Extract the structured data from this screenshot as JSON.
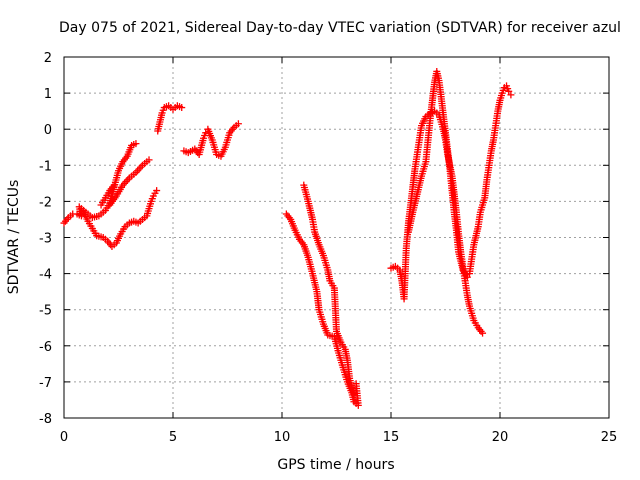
{
  "chart_data": {
    "type": "scatter",
    "title": "Day 075 of 2021, Sidereal Day-to-day VTEC variation (SDTVAR) for receiver azul",
    "xlabel": "GPS time / hours",
    "ylabel": "SDTVAR / TECUs",
    "xlim": [
      0,
      25
    ],
    "ylim": [
      -8,
      2
    ],
    "x_ticks": [
      "0",
      "5",
      "10",
      "15",
      "20",
      "25"
    ],
    "y_ticks": [
      "2",
      "1",
      "0",
      "-1",
      "-2",
      "-3",
      "-4",
      "-5",
      "-6",
      "-7",
      "-8"
    ],
    "grid": true,
    "marker": "plus",
    "color": "#ff0000",
    "series": [
      {
        "points": [
          [
            0.0,
            -2.6
          ],
          [
            0.2,
            -2.45
          ],
          [
            0.4,
            -2.35
          ],
          [
            0.6,
            -2.35
          ],
          [
            0.8,
            -2.4
          ],
          [
            0.7,
            -2.15
          ],
          [
            1.0,
            -2.3
          ],
          [
            1.3,
            -2.45
          ],
          [
            1.6,
            -2.4
          ],
          [
            1.9,
            -2.25
          ],
          [
            2.1,
            -2.05
          ],
          [
            2.3,
            -1.6
          ],
          [
            2.5,
            -1.15
          ],
          [
            2.7,
            -0.9
          ],
          [
            2.9,
            -0.75
          ],
          [
            3.1,
            -0.45
          ],
          [
            3.3,
            -0.4
          ]
        ]
      },
      {
        "points": [
          [
            0.9,
            -2.3
          ],
          [
            1.1,
            -2.55
          ],
          [
            1.3,
            -2.75
          ],
          [
            1.5,
            -2.95
          ],
          [
            1.8,
            -3.0
          ],
          [
            2.0,
            -3.1
          ],
          [
            2.2,
            -3.25
          ],
          [
            2.4,
            -3.15
          ],
          [
            2.6,
            -2.9
          ],
          [
            2.8,
            -2.7
          ],
          [
            3.0,
            -2.6
          ],
          [
            3.2,
            -2.55
          ],
          [
            3.4,
            -2.6
          ],
          [
            3.6,
            -2.5
          ],
          [
            3.8,
            -2.4
          ],
          [
            3.9,
            -2.2
          ],
          [
            4.0,
            -2.0
          ],
          [
            4.1,
            -1.85
          ],
          [
            4.25,
            -1.7
          ]
        ]
      },
      {
        "points": [
          [
            1.7,
            -2.1
          ],
          [
            1.9,
            -1.9
          ],
          [
            2.1,
            -1.7
          ],
          [
            2.3,
            -1.55
          ],
          [
            2.1,
            -2.1
          ],
          [
            2.4,
            -1.85
          ],
          [
            2.7,
            -1.55
          ],
          [
            3.0,
            -1.35
          ],
          [
            3.3,
            -1.2
          ],
          [
            3.6,
            -1.0
          ],
          [
            3.8,
            -0.9
          ],
          [
            3.9,
            -0.85
          ]
        ]
      },
      {
        "points": [
          [
            4.3,
            -0.05
          ],
          [
            4.4,
            0.2
          ],
          [
            4.5,
            0.45
          ],
          [
            4.6,
            0.6
          ],
          [
            4.8,
            0.65
          ],
          [
            5.0,
            0.55
          ],
          [
            5.2,
            0.65
          ],
          [
            5.4,
            0.6
          ]
        ]
      },
      {
        "points": [
          [
            5.5,
            -0.6
          ],
          [
            5.7,
            -0.65
          ],
          [
            6.0,
            -0.55
          ],
          [
            6.2,
            -0.7
          ],
          [
            6.4,
            -0.25
          ],
          [
            6.5,
            -0.1
          ],
          [
            6.6,
            0.0
          ],
          [
            6.8,
            -0.3
          ],
          [
            7.0,
            -0.7
          ],
          [
            7.2,
            -0.75
          ],
          [
            7.4,
            -0.5
          ],
          [
            7.6,
            -0.1
          ],
          [
            7.8,
            0.05
          ],
          [
            8.0,
            0.15
          ]
        ]
      },
      {
        "points": [
          [
            10.2,
            -2.35
          ],
          [
            10.4,
            -2.5
          ],
          [
            10.6,
            -2.8
          ],
          [
            10.8,
            -3.05
          ],
          [
            11.0,
            -3.2
          ],
          [
            11.2,
            -3.55
          ],
          [
            11.4,
            -4.0
          ],
          [
            11.6,
            -4.5
          ],
          [
            11.7,
            -5.0
          ],
          [
            11.9,
            -5.4
          ],
          [
            12.1,
            -5.7
          ],
          [
            12.4,
            -5.75
          ],
          [
            12.6,
            -6.2
          ],
          [
            12.8,
            -6.6
          ],
          [
            13.0,
            -7.0
          ],
          [
            13.2,
            -7.3
          ],
          [
            13.3,
            -7.55
          ],
          [
            13.5,
            -7.65
          ],
          [
            13.4,
            -7.05
          ]
        ]
      },
      {
        "points": [
          [
            11.0,
            -1.55
          ],
          [
            11.2,
            -2.0
          ],
          [
            11.4,
            -2.5
          ],
          [
            11.5,
            -2.85
          ],
          [
            11.7,
            -3.2
          ],
          [
            11.9,
            -3.5
          ],
          [
            12.1,
            -3.9
          ],
          [
            12.2,
            -4.2
          ],
          [
            12.4,
            -4.4
          ],
          [
            12.5,
            -5.6
          ],
          [
            12.7,
            -5.9
          ],
          [
            12.9,
            -6.1
          ],
          [
            13.0,
            -6.4
          ],
          [
            13.1,
            -6.9
          ],
          [
            13.3,
            -7.35
          ]
        ]
      },
      {
        "points": [
          [
            15.0,
            -3.85
          ],
          [
            15.2,
            -3.8
          ],
          [
            15.4,
            -3.9
          ],
          [
            15.5,
            -4.2
          ],
          [
            15.6,
            -4.7
          ],
          [
            15.7,
            -3.3
          ],
          [
            15.8,
            -2.6
          ],
          [
            15.9,
            -2.1
          ],
          [
            16.0,
            -1.6
          ],
          [
            16.1,
            -1.1
          ],
          [
            16.2,
            -0.7
          ],
          [
            16.3,
            -0.3
          ],
          [
            16.4,
            0.1
          ],
          [
            16.6,
            0.35
          ],
          [
            16.8,
            0.45
          ],
          [
            17.0,
            0.5
          ],
          [
            17.2,
            0.4
          ],
          [
            17.4,
            0.0
          ],
          [
            17.5,
            -0.3
          ],
          [
            17.6,
            -0.7
          ],
          [
            17.8,
            -1.3
          ],
          [
            17.9,
            -1.8
          ],
          [
            18.0,
            -2.3
          ],
          [
            18.1,
            -2.9
          ],
          [
            18.2,
            -3.4
          ],
          [
            18.3,
            -3.8
          ],
          [
            18.4,
            -4.2
          ],
          [
            18.5,
            -4.6
          ],
          [
            18.6,
            -4.9
          ],
          [
            18.7,
            -5.1
          ],
          [
            18.8,
            -5.3
          ],
          [
            19.0,
            -5.5
          ],
          [
            19.2,
            -5.65
          ]
        ]
      },
      {
        "points": [
          [
            15.8,
            -2.85
          ],
          [
            16.0,
            -2.3
          ],
          [
            16.2,
            -1.8
          ],
          [
            16.4,
            -1.3
          ],
          [
            16.6,
            -0.9
          ],
          [
            16.7,
            -0.3
          ],
          [
            16.8,
            0.3
          ],
          [
            16.9,
            0.8
          ],
          [
            17.0,
            1.3
          ],
          [
            17.1,
            1.6
          ],
          [
            17.2,
            1.35
          ],
          [
            17.3,
            0.9
          ],
          [
            17.4,
            0.4
          ],
          [
            17.5,
            -0.1
          ],
          [
            17.6,
            -0.6
          ],
          [
            17.7,
            -1.1
          ],
          [
            17.8,
            -1.7
          ],
          [
            17.9,
            -2.3
          ],
          [
            18.0,
            -2.8
          ],
          [
            18.1,
            -3.4
          ],
          [
            18.3,
            -3.9
          ],
          [
            18.5,
            -4.1
          ],
          [
            18.6,
            -4.0
          ],
          [
            18.7,
            -3.6
          ],
          [
            18.8,
            -3.2
          ],
          [
            19.0,
            -2.7
          ],
          [
            19.1,
            -2.3
          ],
          [
            19.3,
            -1.9
          ],
          [
            19.4,
            -1.4
          ],
          [
            19.5,
            -1.0
          ],
          [
            19.6,
            -0.6
          ],
          [
            19.7,
            -0.3
          ],
          [
            19.8,
            0.1
          ],
          [
            19.9,
            0.5
          ],
          [
            20.0,
            0.8
          ],
          [
            20.1,
            1.0
          ],
          [
            20.2,
            1.15
          ],
          [
            20.3,
            1.2
          ],
          [
            20.4,
            1.05
          ],
          [
            20.5,
            0.95
          ]
        ]
      }
    ]
  }
}
